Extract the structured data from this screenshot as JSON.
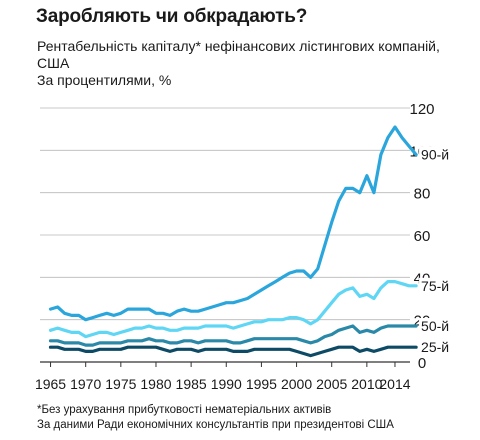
{
  "chart_data": {
    "type": "line",
    "title": "Заробляють чи обкрадають?",
    "subtitle": "Рентабельність капіталу* нефінансових лістингових компаній, США",
    "ylabel": "За процентилями, %",
    "ylim": [
      0,
      120
    ],
    "yticks": [
      "0",
      "20",
      "40",
      "60",
      "80",
      "100",
      "120"
    ],
    "xlim": [
      1963.5,
      2015
    ],
    "xticks": [
      "1965",
      "1970",
      "1975",
      "1980",
      "1985",
      "1990",
      "1995",
      "2000",
      "2005",
      "2010",
      "2014"
    ],
    "grid": true,
    "series": [
      {
        "name": "90-й",
        "color": "#2aa6dc",
        "points": [
          [
            1965,
            25
          ],
          [
            1966,
            26
          ],
          [
            1967,
            23
          ],
          [
            1968,
            22
          ],
          [
            1969,
            22
          ],
          [
            1970,
            20
          ],
          [
            1971,
            21
          ],
          [
            1972,
            22
          ],
          [
            1973,
            23
          ],
          [
            1974,
            22
          ],
          [
            1975,
            23
          ],
          [
            1976,
            25
          ],
          [
            1977,
            25
          ],
          [
            1978,
            25
          ],
          [
            1979,
            25
          ],
          [
            1980,
            23
          ],
          [
            1981,
            23
          ],
          [
            1982,
            22
          ],
          [
            1983,
            24
          ],
          [
            1984,
            25
          ],
          [
            1985,
            24
          ],
          [
            1986,
            24
          ],
          [
            1987,
            25
          ],
          [
            1988,
            26
          ],
          [
            1989,
            27
          ],
          [
            1990,
            28
          ],
          [
            1991,
            28
          ],
          [
            1992,
            29
          ],
          [
            1993,
            30
          ],
          [
            1994,
            32
          ],
          [
            1995,
            34
          ],
          [
            1996,
            36
          ],
          [
            1997,
            38
          ],
          [
            1998,
            40
          ],
          [
            1999,
            42
          ],
          [
            2000,
            43
          ],
          [
            2001,
            43
          ],
          [
            2002,
            40
          ],
          [
            2003,
            44
          ],
          [
            2004,
            55
          ],
          [
            2005,
            66
          ],
          [
            2006,
            76
          ],
          [
            2007,
            82
          ],
          [
            2008,
            82
          ],
          [
            2009,
            80
          ],
          [
            2010,
            88
          ],
          [
            2011,
            80
          ],
          [
            2012,
            98
          ],
          [
            2013,
            106
          ],
          [
            2014,
            111
          ],
          [
            2015,
            106
          ],
          [
            2016,
            102
          ],
          [
            2017,
            98
          ]
        ]
      },
      {
        "name": "75-й",
        "color": "#5fd6f4",
        "points": [
          [
            1965,
            15
          ],
          [
            1966,
            16
          ],
          [
            1967,
            15
          ],
          [
            1968,
            14
          ],
          [
            1969,
            14
          ],
          [
            1970,
            12
          ],
          [
            1971,
            13
          ],
          [
            1972,
            14
          ],
          [
            1973,
            14
          ],
          [
            1974,
            13
          ],
          [
            1975,
            14
          ],
          [
            1976,
            15
          ],
          [
            1977,
            16
          ],
          [
            1978,
            16
          ],
          [
            1979,
            17
          ],
          [
            1980,
            16
          ],
          [
            1981,
            16
          ],
          [
            1982,
            15
          ],
          [
            1983,
            15
          ],
          [
            1984,
            16
          ],
          [
            1985,
            16
          ],
          [
            1986,
            16
          ],
          [
            1987,
            17
          ],
          [
            1988,
            17
          ],
          [
            1989,
            17
          ],
          [
            1990,
            17
          ],
          [
            1991,
            16
          ],
          [
            1992,
            17
          ],
          [
            1993,
            18
          ],
          [
            1994,
            19
          ],
          [
            1995,
            19
          ],
          [
            1996,
            20
          ],
          [
            1997,
            20
          ],
          [
            1998,
            20
          ],
          [
            1999,
            21
          ],
          [
            2000,
            21
          ],
          [
            2001,
            20
          ],
          [
            2002,
            18
          ],
          [
            2003,
            20
          ],
          [
            2004,
            24
          ],
          [
            2005,
            28
          ],
          [
            2006,
            32
          ],
          [
            2007,
            34
          ],
          [
            2008,
            35
          ],
          [
            2009,
            31
          ],
          [
            2010,
            32
          ],
          [
            2011,
            30
          ],
          [
            2012,
            35
          ],
          [
            2013,
            38
          ],
          [
            2014,
            38
          ],
          [
            2015,
            37
          ],
          [
            2016,
            36
          ],
          [
            2017,
            36
          ]
        ]
      },
      {
        "name": "50-й",
        "color": "#2a89a8",
        "points": [
          [
            1965,
            10
          ],
          [
            1966,
            10
          ],
          [
            1967,
            9
          ],
          [
            1968,
            9
          ],
          [
            1969,
            9
          ],
          [
            1970,
            8
          ],
          [
            1971,
            8
          ],
          [
            1972,
            9
          ],
          [
            1973,
            9
          ],
          [
            1974,
            9
          ],
          [
            1975,
            9
          ],
          [
            1976,
            10
          ],
          [
            1977,
            10
          ],
          [
            1978,
            10
          ],
          [
            1979,
            11
          ],
          [
            1980,
            10
          ],
          [
            1981,
            10
          ],
          [
            1982,
            9
          ],
          [
            1983,
            9
          ],
          [
            1984,
            10
          ],
          [
            1985,
            10
          ],
          [
            1986,
            9
          ],
          [
            1987,
            10
          ],
          [
            1988,
            10
          ],
          [
            1989,
            10
          ],
          [
            1990,
            10
          ],
          [
            1991,
            9
          ],
          [
            1992,
            9
          ],
          [
            1993,
            10
          ],
          [
            1994,
            11
          ],
          [
            1995,
            11
          ],
          [
            1996,
            11
          ],
          [
            1997,
            11
          ],
          [
            1998,
            11
          ],
          [
            1999,
            11
          ],
          [
            2000,
            11
          ],
          [
            2001,
            10
          ],
          [
            2002,
            9
          ],
          [
            2003,
            10
          ],
          [
            2004,
            12
          ],
          [
            2005,
            13
          ],
          [
            2006,
            15
          ],
          [
            2007,
            16
          ],
          [
            2008,
            17
          ],
          [
            2009,
            14
          ],
          [
            2010,
            15
          ],
          [
            2011,
            14
          ],
          [
            2012,
            16
          ],
          [
            2013,
            17
          ],
          [
            2014,
            17
          ],
          [
            2015,
            17
          ],
          [
            2016,
            17
          ],
          [
            2017,
            17
          ]
        ]
      },
      {
        "name": "25-й",
        "color": "#0d4a66",
        "points": [
          [
            1965,
            7
          ],
          [
            1966,
            7
          ],
          [
            1967,
            6
          ],
          [
            1968,
            6
          ],
          [
            1969,
            6
          ],
          [
            1970,
            5
          ],
          [
            1971,
            5
          ],
          [
            1972,
            6
          ],
          [
            1973,
            6
          ],
          [
            1974,
            6
          ],
          [
            1975,
            6
          ],
          [
            1976,
            7
          ],
          [
            1977,
            7
          ],
          [
            1978,
            7
          ],
          [
            1979,
            7
          ],
          [
            1980,
            7
          ],
          [
            1981,
            6
          ],
          [
            1982,
            5
          ],
          [
            1983,
            6
          ],
          [
            1984,
            6
          ],
          [
            1985,
            6
          ],
          [
            1986,
            5
          ],
          [
            1987,
            6
          ],
          [
            1988,
            6
          ],
          [
            1989,
            6
          ],
          [
            1990,
            6
          ],
          [
            1991,
            5
          ],
          [
            1992,
            5
          ],
          [
            1993,
            5
          ],
          [
            1994,
            6
          ],
          [
            1995,
            6
          ],
          [
            1996,
            6
          ],
          [
            1997,
            6
          ],
          [
            1998,
            6
          ],
          [
            1999,
            6
          ],
          [
            2000,
            5
          ],
          [
            2001,
            4
          ],
          [
            2002,
            3
          ],
          [
            2003,
            4
          ],
          [
            2004,
            5
          ],
          [
            2005,
            6
          ],
          [
            2006,
            7
          ],
          [
            2007,
            7
          ],
          [
            2008,
            7
          ],
          [
            2009,
            5
          ],
          [
            2010,
            6
          ],
          [
            2011,
            5
          ],
          [
            2012,
            6
          ],
          [
            2013,
            7
          ],
          [
            2014,
            7
          ],
          [
            2015,
            7
          ],
          [
            2016,
            7
          ],
          [
            2017,
            7
          ]
        ]
      }
    ]
  },
  "footnote": "*Без урахування прибутковості нематеріальних активів",
  "source": "За даними Ради економічних консультантів при президентові США"
}
